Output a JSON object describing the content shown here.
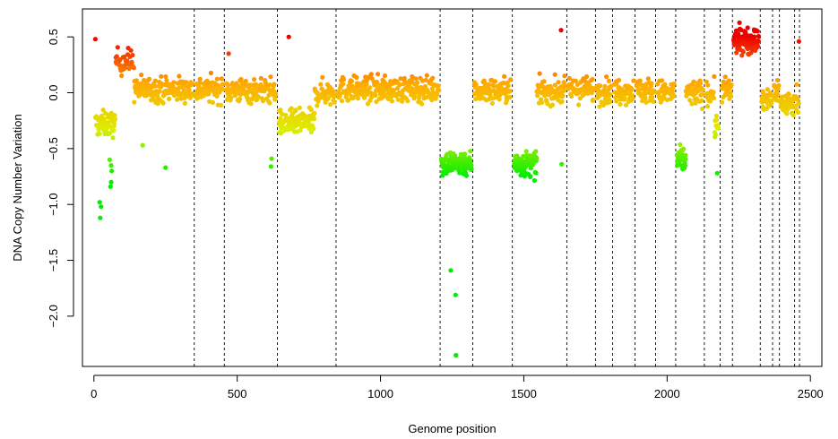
{
  "chart_data": {
    "type": "scatter",
    "title": "",
    "xlabel": "Genome position",
    "ylabel": "DNA Copy Number Variation",
    "xlim": [
      -40,
      2540
    ],
    "ylim": [
      -2.45,
      0.75
    ],
    "x_ticks": [
      0,
      500,
      1000,
      1500,
      2000,
      2500
    ],
    "x_tick_labels": [
      "0",
      "500",
      "1000",
      "1500",
      "2000",
      "2500"
    ],
    "y_ticks": [
      -2.0,
      -1.5,
      -1.0,
      -0.5,
      0.0,
      0.5
    ],
    "y_tick_labels": [
      "−2.0",
      "−1.5",
      "−1.0",
      "−0.5",
      "0.0",
      "0.5"
    ],
    "grid": false,
    "legend": "none",
    "color_scale": {
      "low": "#00ee00",
      "mid_low": "#ddee00",
      "mid_high": "#ffaa00",
      "high": "#ee0000",
      "low_value": -0.75,
      "high_value": 0.5
    },
    "boundary_color": "#000000",
    "boundaries": [
      350,
      455,
      640,
      845,
      1208,
      1322,
      1460,
      1650,
      1750,
      1810,
      1888,
      1960,
      2030,
      2130,
      2185,
      2228,
      2325,
      2368,
      2392,
      2445,
      2462
    ],
    "segments": [
      {
        "x_start": 5,
        "x_end": 75,
        "mean": -0.28,
        "n": 60
      },
      {
        "x_start": 75,
        "x_end": 140,
        "mean": 0.28,
        "n": 40
      },
      {
        "x_start": 140,
        "x_end": 345,
        "mean": 0.03,
        "n": 150
      },
      {
        "x_start": 355,
        "x_end": 450,
        "mean": 0.03,
        "n": 70
      },
      {
        "x_start": 460,
        "x_end": 635,
        "mean": 0.02,
        "n": 130
      },
      {
        "x_start": 645,
        "x_end": 770,
        "mean": -0.27,
        "n": 110
      },
      {
        "x_start": 770,
        "x_end": 840,
        "mean": 0.0,
        "n": 50
      },
      {
        "x_start": 850,
        "x_end": 1205,
        "mean": 0.03,
        "n": 260
      },
      {
        "x_start": 1212,
        "x_end": 1318,
        "mean": -0.63,
        "n": 110
      },
      {
        "x_start": 1326,
        "x_end": 1455,
        "mean": 0.02,
        "n": 90
      },
      {
        "x_start": 1466,
        "x_end": 1545,
        "mean": -0.64,
        "n": 90
      },
      {
        "x_start": 1545,
        "x_end": 1645,
        "mean": 0.01,
        "n": 70
      },
      {
        "x_start": 1655,
        "x_end": 1745,
        "mean": 0.03,
        "n": 65
      },
      {
        "x_start": 1755,
        "x_end": 1805,
        "mean": 0.01,
        "n": 40
      },
      {
        "x_start": 1815,
        "x_end": 1883,
        "mean": 0.02,
        "n": 50
      },
      {
        "x_start": 1893,
        "x_end": 1955,
        "mean": 0.02,
        "n": 45
      },
      {
        "x_start": 1965,
        "x_end": 2025,
        "mean": 0.0,
        "n": 45
      },
      {
        "x_start": 2034,
        "x_end": 2065,
        "mean": -0.6,
        "n": 35
      },
      {
        "x_start": 2065,
        "x_end": 2125,
        "mean": 0.0,
        "n": 45
      },
      {
        "x_start": 2135,
        "x_end": 2165,
        "mean": -0.01,
        "n": 25
      },
      {
        "x_start": 2165,
        "x_end": 2180,
        "mean": -0.3,
        "n": 12
      },
      {
        "x_start": 2190,
        "x_end": 2225,
        "mean": 0.02,
        "n": 30
      },
      {
        "x_start": 2232,
        "x_end": 2320,
        "mean": 0.47,
        "n": 110
      },
      {
        "x_start": 2330,
        "x_end": 2365,
        "mean": -0.08,
        "n": 35
      },
      {
        "x_start": 2372,
        "x_end": 2390,
        "mean": 0.02,
        "n": 15
      },
      {
        "x_start": 2395,
        "x_end": 2443,
        "mean": -0.1,
        "n": 45
      },
      {
        "x_start": 2448,
        "x_end": 2460,
        "mean": -0.05,
        "n": 10
      }
    ],
    "outliers": [
      {
        "x": 5,
        "y": 0.48
      },
      {
        "x": 20,
        "y": -0.98
      },
      {
        "x": 25,
        "y": -1.02
      },
      {
        "x": 22,
        "y": -1.12
      },
      {
        "x": 55,
        "y": -0.6
      },
      {
        "x": 60,
        "y": -0.65
      },
      {
        "x": 62,
        "y": -0.7
      },
      {
        "x": 60,
        "y": -0.8
      },
      {
        "x": 58,
        "y": -0.84
      },
      {
        "x": 170,
        "y": -0.47
      },
      {
        "x": 250,
        "y": -0.67
      },
      {
        "x": 470,
        "y": 0.35
      },
      {
        "x": 620,
        "y": -0.59
      },
      {
        "x": 618,
        "y": -0.66
      },
      {
        "x": 680,
        "y": 0.5
      },
      {
        "x": 1245,
        "y": -1.59
      },
      {
        "x": 1262,
        "y": -1.81
      },
      {
        "x": 1263,
        "y": -2.35
      },
      {
        "x": 1630,
        "y": 0.56
      },
      {
        "x": 1632,
        "y": -0.64
      },
      {
        "x": 2175,
        "y": -0.72
      },
      {
        "x": 2460,
        "y": 0.46
      }
    ]
  }
}
